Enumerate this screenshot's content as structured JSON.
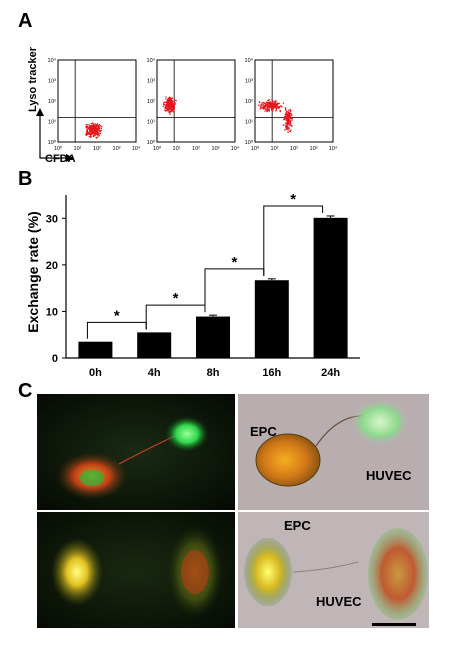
{
  "panels": {
    "a": "A",
    "b": "B",
    "c": "C"
  },
  "flow": {
    "ylabel": "Lyso tracker",
    "xlabel": "CFDA",
    "tick_labels": [
      "10⁰",
      "10¹",
      "10²",
      "10³",
      "10⁴"
    ]
  },
  "chart_data": {
    "type": "bar",
    "title": "",
    "xlabel": "",
    "ylabel": "Exchange rate (%)",
    "categories": [
      "0h",
      "4h",
      "8h",
      "16h",
      "24h"
    ],
    "values": [
      3.5,
      5.5,
      8.9,
      16.7,
      30.1
    ],
    "errors": [
      0,
      0,
      0.3,
      0.3,
      0.4
    ],
    "ylim": [
      0,
      35
    ],
    "yticks": [
      0,
      10,
      20,
      30
    ],
    "significance": [
      "*",
      "*",
      "*",
      "*"
    ],
    "bar_color": "#000000",
    "star_color": "#000000"
  },
  "micrographs": {
    "labels": [
      "EPC",
      "HUVEC",
      "EPC",
      "HUVEC"
    ]
  },
  "colors": {
    "dot_red": "#e8141c",
    "fluor_bg": "#0c1508",
    "brightfield_bg": "#b8aeb0"
  }
}
